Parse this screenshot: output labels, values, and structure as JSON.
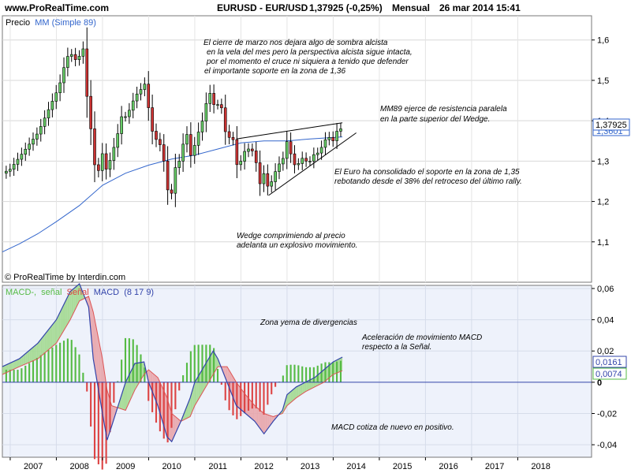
{
  "header": {
    "site": "www.ProRealTime.com",
    "symbol": "EURUSD - EUR/USD",
    "quote": "1,37925 (-0,25%)",
    "period": "Mensual",
    "datetime": "26 mar 2014 15:41"
  },
  "colors": {
    "up_candle": "#66cc66",
    "down_candle": "#cc3333",
    "ma_line": "#3366cc",
    "macd_line": "#3344aa",
    "signal_line": "#dd5555",
    "hist_pos": "#55bb44",
    "hist_neg": "#dd4444",
    "pane_bg": "#eef2fb",
    "wedge": "#000000"
  },
  "price_pane": {
    "legend_prefix": "Precio",
    "legend_ma": "MM (Simple 89)",
    "credit": "© ProRealTime by Interdin.com",
    "last_price_label": "1,37925",
    "ma_value_label": "1,3601",
    "annotations": [
      "El cierre de marzo nos dejara algo de sombra alcista",
      " en la vela del mes pero la perspectiva alcista sigue intacta,",
      " por el momento el cruce ni siquiera a tenido que defender",
      "el importante soporte en la zona de 1,36",
      "MM89 ejerce de resistencia paralela",
      "en la parte superior del Wedge.",
      "El Euro ha consolidado el soporte en la zona de 1,35",
      "rebotando desde el 38% del retroceso del último rally.",
      "Wedge comprimiendo al precio",
      "adelanta un explosivo movimiento."
    ]
  },
  "macd_pane": {
    "legend_macd_minus": "MACD-,",
    "legend_senal": "señal",
    "legend_senal2": "Señal",
    "legend_macd": "MACD",
    "legend_params": "(8 17 9)",
    "macd_value_label": "0,0161",
    "signal_value_label": "0,0074",
    "zero_label": "0",
    "annotations": [
      "Zona yema de divergencias",
      "Aceleración de movimiento MACD",
      "respecto a la Señal.",
      "MACD cotiza de nuevo en positivo."
    ]
  },
  "chart_data": {
    "type": "candlestick",
    "x_axis_labels": [
      "2007",
      "2008",
      "2009",
      "2010",
      "2011",
      "2012",
      "2013",
      "2014",
      "2015",
      "2016",
      "2017",
      "2018"
    ],
    "price_axis": {
      "ticks": [
        "1,1",
        "1,2",
        "1,3",
        "1,4",
        "1,5",
        "1,6"
      ],
      "range": [
        1.0,
        1.66
      ]
    },
    "macd_axis": {
      "ticks": [
        "-0,04",
        "-0,02",
        "0",
        "0,02",
        "0,04",
        "0,06"
      ],
      "range": [
        -0.048,
        0.062
      ]
    },
    "price_path": [
      [
        2006.83,
        1.27
      ],
      [
        2007.0,
        1.28
      ],
      [
        2007.2,
        1.31
      ],
      [
        2007.4,
        1.34
      ],
      [
        2007.6,
        1.37
      ],
      [
        2007.8,
        1.42
      ],
      [
        2008.0,
        1.47
      ],
      [
        2008.1,
        1.5
      ],
      [
        2008.2,
        1.55
      ],
      [
        2008.3,
        1.57
      ],
      [
        2008.4,
        1.55
      ],
      [
        2008.5,
        1.56
      ],
      [
        2008.55,
        1.59
      ],
      [
        2008.6,
        1.57
      ],
      [
        2008.65,
        1.47
      ],
      [
        2008.72,
        1.42
      ],
      [
        2008.8,
        1.3
      ],
      [
        2008.9,
        1.27
      ],
      [
        2009.0,
        1.32
      ],
      [
        2009.1,
        1.27
      ],
      [
        2009.2,
        1.32
      ],
      [
        2009.3,
        1.35
      ],
      [
        2009.4,
        1.41
      ],
      [
        2009.5,
        1.41
      ],
      [
        2009.6,
        1.43
      ],
      [
        2009.7,
        1.46
      ],
      [
        2009.85,
        1.48
      ],
      [
        2009.9,
        1.5
      ],
      [
        2010.0,
        1.43
      ],
      [
        2010.1,
        1.36
      ],
      [
        2010.2,
        1.35
      ],
      [
        2010.3,
        1.33
      ],
      [
        2010.4,
        1.23
      ],
      [
        2010.5,
        1.22
      ],
      [
        2010.6,
        1.3
      ],
      [
        2010.7,
        1.3
      ],
      [
        2010.8,
        1.39
      ],
      [
        2010.9,
        1.31
      ],
      [
        2011.0,
        1.34
      ],
      [
        2011.1,
        1.38
      ],
      [
        2011.2,
        1.41
      ],
      [
        2011.3,
        1.48
      ],
      [
        2011.4,
        1.44
      ],
      [
        2011.5,
        1.44
      ],
      [
        2011.6,
        1.43
      ],
      [
        2011.7,
        1.34
      ],
      [
        2011.8,
        1.38
      ],
      [
        2011.9,
        1.29
      ],
      [
        2012.0,
        1.3
      ],
      [
        2012.1,
        1.33
      ],
      [
        2012.2,
        1.33
      ],
      [
        2012.3,
        1.32
      ],
      [
        2012.4,
        1.24
      ],
      [
        2012.5,
        1.27
      ],
      [
        2012.6,
        1.23
      ],
      [
        2012.7,
        1.26
      ],
      [
        2012.8,
        1.29
      ],
      [
        2012.9,
        1.3
      ],
      [
        2013.0,
        1.35
      ],
      [
        2013.1,
        1.31
      ],
      [
        2013.2,
        1.28
      ],
      [
        2013.3,
        1.31
      ],
      [
        2013.4,
        1.3
      ],
      [
        2013.5,
        1.3
      ],
      [
        2013.6,
        1.32
      ],
      [
        2013.7,
        1.32
      ],
      [
        2013.8,
        1.35
      ],
      [
        2013.9,
        1.36
      ],
      [
        2014.0,
        1.35
      ],
      [
        2014.1,
        1.38
      ],
      [
        2014.2,
        1.38
      ]
    ],
    "ma89": [
      [
        2006.83,
        1.075
      ],
      [
        2007.2,
        1.095
      ],
      [
        2007.6,
        1.12
      ],
      [
        2008.0,
        1.15
      ],
      [
        2008.5,
        1.19
      ],
      [
        2009.0,
        1.24
      ],
      [
        2009.5,
        1.27
      ],
      [
        2010.0,
        1.29
      ],
      [
        2010.5,
        1.305
      ],
      [
        2011.0,
        1.315
      ],
      [
        2011.5,
        1.33
      ],
      [
        2012.0,
        1.345
      ],
      [
        2012.5,
        1.35
      ],
      [
        2013.0,
        1.35
      ],
      [
        2013.5,
        1.355
      ],
      [
        2014.2,
        1.36
      ]
    ],
    "wedge_upper": [
      [
        2011.9,
        1.355
      ],
      [
        2014.2,
        1.395
      ]
    ],
    "wedge_lower": [
      [
        2012.6,
        1.215
      ],
      [
        2014.5,
        1.37
      ]
    ],
    "macd_path": [
      [
        2006.83,
        0.01
      ],
      [
        2007.2,
        0.015
      ],
      [
        2007.6,
        0.025
      ],
      [
        2008.0,
        0.04
      ],
      [
        2008.3,
        0.058
      ],
      [
        2008.5,
        0.063
      ],
      [
        2008.7,
        0.048
      ],
      [
        2008.8,
        0.015
      ],
      [
        2009.0,
        -0.02
      ],
      [
        2009.1,
        -0.037
      ],
      [
        2009.2,
        -0.028
      ],
      [
        2009.5,
        0.0
      ],
      [
        2009.7,
        0.012
      ],
      [
        2009.9,
        0.013
      ],
      [
        2010.0,
        0.0
      ],
      [
        2010.2,
        -0.015
      ],
      [
        2010.4,
        -0.035
      ],
      [
        2010.5,
        -0.038
      ],
      [
        2010.7,
        -0.025
      ],
      [
        2010.9,
        -0.01
      ],
      [
        2011.0,
        0.0
      ],
      [
        2011.2,
        0.01
      ],
      [
        2011.4,
        0.02
      ],
      [
        2011.5,
        0.015
      ],
      [
        2011.7,
        0.0
      ],
      [
        2011.9,
        -0.015
      ],
      [
        2012.1,
        -0.02
      ],
      [
        2012.3,
        -0.025
      ],
      [
        2012.5,
        -0.033
      ],
      [
        2012.7,
        -0.025
      ],
      [
        2012.9,
        -0.018
      ],
      [
        2013.0,
        -0.008
      ],
      [
        2013.2,
        -0.003
      ],
      [
        2013.4,
        0.0
      ],
      [
        2013.6,
        0.003
      ],
      [
        2013.8,
        0.008
      ],
      [
        2014.0,
        0.013
      ],
      [
        2014.2,
        0.0161
      ]
    ],
    "signal_path": [
      [
        2006.83,
        0.005
      ],
      [
        2007.2,
        0.01
      ],
      [
        2007.6,
        0.015
      ],
      [
        2008.0,
        0.025
      ],
      [
        2008.3,
        0.04
      ],
      [
        2008.5,
        0.052
      ],
      [
        2008.7,
        0.055
      ],
      [
        2008.8,
        0.045
      ],
      [
        2009.0,
        0.015
      ],
      [
        2009.1,
        -0.005
      ],
      [
        2009.2,
        -0.015
      ],
      [
        2009.5,
        -0.018
      ],
      [
        2009.7,
        -0.005
      ],
      [
        2009.9,
        0.005
      ],
      [
        2010.0,
        0.008
      ],
      [
        2010.2,
        0.003
      ],
      [
        2010.4,
        -0.01
      ],
      [
        2010.5,
        -0.02
      ],
      [
        2010.7,
        -0.025
      ],
      [
        2010.9,
        -0.022
      ],
      [
        2011.0,
        -0.015
      ],
      [
        2011.2,
        -0.005
      ],
      [
        2011.4,
        0.005
      ],
      [
        2011.5,
        0.01
      ],
      [
        2011.7,
        0.01
      ],
      [
        2011.9,
        0.0
      ],
      [
        2012.1,
        -0.008
      ],
      [
        2012.3,
        -0.015
      ],
      [
        2012.5,
        -0.02
      ],
      [
        2012.7,
        -0.022
      ],
      [
        2012.9,
        -0.02
      ],
      [
        2013.0,
        -0.015
      ],
      [
        2013.2,
        -0.01
      ],
      [
        2013.4,
        -0.006
      ],
      [
        2013.6,
        -0.003
      ],
      [
        2013.8,
        0.0
      ],
      [
        2014.0,
        0.005
      ],
      [
        2014.2,
        0.0074
      ]
    ]
  }
}
